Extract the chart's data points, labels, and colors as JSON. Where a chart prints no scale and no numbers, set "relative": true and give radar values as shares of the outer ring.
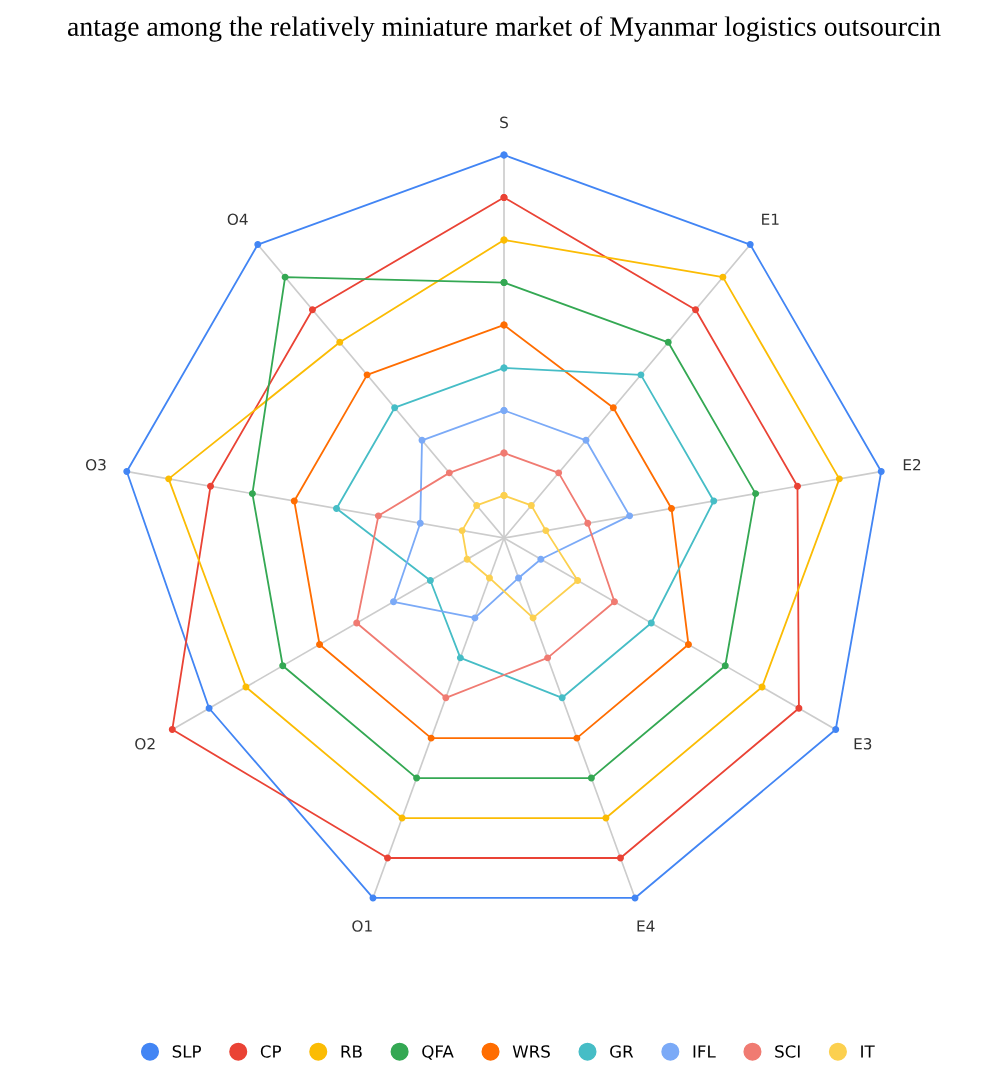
{
  "chart_data": {
    "type": "radar",
    "relative": true,
    "grid": "x",
    "legend": "bottom",
    "marker": "circle",
    "line_style": "solid",
    "categories": [
      "S",
      "E1",
      "E2",
      "E3",
      "E4",
      "O1",
      "O2",
      "O3",
      "O4"
    ],
    "annotations": [
      "antage among the relatively miniature market of Myanmar logistics outsourcin"
    ],
    "series": [
      {
        "name": "SLP",
        "color": "#4285f4",
        "values": [
          1,
          1,
          1,
          1,
          1,
          1,
          0.889,
          1,
          1
        ]
      },
      {
        "name": "CP",
        "color": "#ea4335",
        "values": [
          0.889,
          0.778,
          0.778,
          0.889,
          0.889,
          0.889,
          1,
          0.778,
          0.778
        ]
      },
      {
        "name": "RB",
        "color": "#fbbc04",
        "values": [
          0.778,
          0.889,
          0.889,
          0.778,
          0.778,
          0.778,
          0.778,
          0.889,
          0.667
        ]
      },
      {
        "name": "QFA",
        "color": "#34a853",
        "values": [
          0.667,
          0.667,
          0.667,
          0.667,
          0.667,
          0.667,
          0.667,
          0.667,
          0.889
        ]
      },
      {
        "name": "WRS",
        "color": "#ff6d01",
        "values": [
          0.556,
          0.444,
          0.444,
          0.556,
          0.556,
          0.556,
          0.556,
          0.556,
          0.556
        ]
      },
      {
        "name": "GR",
        "color": "#46bdc6",
        "values": [
          0.444,
          0.556,
          0.556,
          0.444,
          0.444,
          0.333,
          0.222,
          0.444,
          0.444
        ]
      },
      {
        "name": "IFL",
        "color": "#7baaf7",
        "values": [
          0.333,
          0.333,
          0.333,
          0.111,
          0.111,
          0.222,
          0.333,
          0.222,
          0.333
        ]
      },
      {
        "name": "SCI",
        "color": "#f07b72",
        "values": [
          0.222,
          0.222,
          0.222,
          0.333,
          0.333,
          0.444,
          0.444,
          0.333,
          0.222
        ]
      },
      {
        "name": "IT",
        "color": "#fcd04f",
        "values": [
          0.111,
          0.111,
          0.111,
          0.222,
          0.222,
          0.111,
          0.111,
          0.111,
          0.111
        ]
      }
    ]
  }
}
